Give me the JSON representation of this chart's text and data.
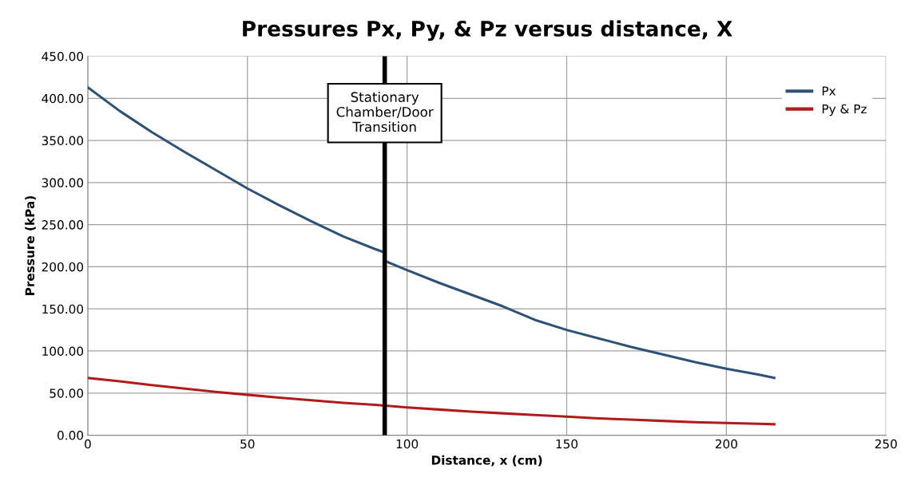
{
  "chart_data": {
    "type": "line",
    "title": "Pressures Px, Py, & Pz versus distance, X",
    "xlabel": "Distance, x (cm)",
    "ylabel": "Pressure (kPa)",
    "series": [
      {
        "name": "Px",
        "color": "#2e5275",
        "x": [
          0,
          10,
          20,
          30,
          40,
          50,
          60,
          70,
          80,
          90,
          93,
          93,
          100,
          110,
          120,
          130,
          140,
          150,
          160,
          170,
          180,
          190,
          200,
          210,
          215
        ],
        "values": [
          413,
          385,
          360,
          337,
          315,
          293,
          273,
          254,
          236,
          221,
          217,
          207,
          196,
          181,
          167,
          153,
          137,
          125,
          115,
          105,
          96,
          87,
          79,
          72,
          68
        ]
      },
      {
        "name": "Py & Pz",
        "color": "#b01c1c",
        "x": [
          0,
          10,
          20,
          30,
          40,
          50,
          60,
          70,
          80,
          90,
          100,
          110,
          120,
          130,
          140,
          150,
          160,
          170,
          180,
          190,
          200,
          210,
          215
        ],
        "values": [
          68,
          64,
          59.5,
          55.5,
          51.5,
          48,
          44.5,
          41.5,
          38.5,
          36,
          33,
          30.5,
          28,
          26,
          24,
          22,
          20,
          18.5,
          17,
          15.5,
          14.5,
          13.5,
          13
        ]
      }
    ],
    "ref_lines": [
      {
        "axis": "x",
        "value": 93,
        "label": "Stationary\nChamber/Door\nTransition",
        "color": "#000000"
      }
    ],
    "xlim": [
      0,
      250
    ],
    "xticks": [
      0,
      50,
      100,
      150,
      200,
      250
    ],
    "ylim": [
      0,
      450
    ],
    "yticks": [
      {
        "value": 0,
        "label": "0.00"
      },
      {
        "value": 50,
        "label": "50.00"
      },
      {
        "value": 100,
        "label": "100.00"
      },
      {
        "value": 150,
        "label": "150.00"
      },
      {
        "value": 200,
        "label": "200.00"
      },
      {
        "value": 250,
        "label": "250.00"
      },
      {
        "value": 300,
        "label": "300.00"
      },
      {
        "value": 350,
        "label": "350.00"
      },
      {
        "value": 400,
        "label": "400.00"
      },
      {
        "value": 450,
        "label": "450.00"
      }
    ],
    "grid": true,
    "legend": "top right",
    "marker": "none",
    "line_style": "solid"
  }
}
